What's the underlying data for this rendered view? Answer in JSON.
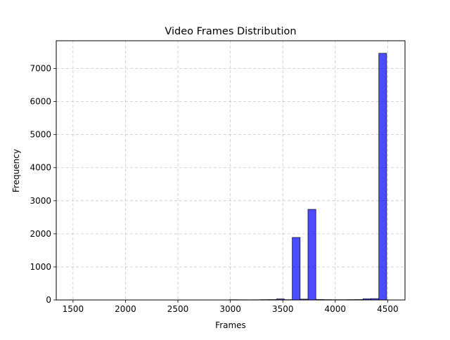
{
  "chart_data": {
    "type": "bar",
    "title": "Video Frames Distribution",
    "xlabel": "Frames",
    "ylabel": "Frequency",
    "xlim": [
      1340,
      4665
    ],
    "ylim": [
      0,
      7840
    ],
    "xticks": [
      1500,
      2000,
      2500,
      3000,
      3500,
      4000,
      4500
    ],
    "yticks": [
      0,
      1000,
      2000,
      3000,
      4000,
      5000,
      6000,
      7000
    ],
    "grid": true,
    "bar_color": "#0000ff",
    "bar_alpha": 0.7,
    "bar_edge_color": "#000000",
    "bin_width": 75,
    "bins": [
      {
        "start": 1490,
        "count": 0
      },
      {
        "start": 1565,
        "count": 0
      },
      {
        "start": 1640,
        "count": 0
      },
      {
        "start": 1715,
        "count": 0
      },
      {
        "start": 1790,
        "count": 0
      },
      {
        "start": 1865,
        "count": 0
      },
      {
        "start": 1940,
        "count": 0
      },
      {
        "start": 2015,
        "count": 0
      },
      {
        "start": 2090,
        "count": 0
      },
      {
        "start": 2165,
        "count": 0
      },
      {
        "start": 2240,
        "count": 0
      },
      {
        "start": 2315,
        "count": 0
      },
      {
        "start": 2390,
        "count": 0
      },
      {
        "start": 2465,
        "count": 0
      },
      {
        "start": 2540,
        "count": 0
      },
      {
        "start": 2615,
        "count": 0
      },
      {
        "start": 2690,
        "count": 0
      },
      {
        "start": 2765,
        "count": 0
      },
      {
        "start": 2840,
        "count": 0
      },
      {
        "start": 2915,
        "count": 0
      },
      {
        "start": 2990,
        "count": 8
      },
      {
        "start": 3065,
        "count": 6
      },
      {
        "start": 3140,
        "count": 5
      },
      {
        "start": 3215,
        "count": 6
      },
      {
        "start": 3290,
        "count": 10
      },
      {
        "start": 3365,
        "count": 12
      },
      {
        "start": 3440,
        "count": 30
      },
      {
        "start": 3515,
        "count": 8
      },
      {
        "start": 3590,
        "count": 1890
      },
      {
        "start": 3665,
        "count": 25
      },
      {
        "start": 3740,
        "count": 2740
      },
      {
        "start": 3815,
        "count": 15
      },
      {
        "start": 3890,
        "count": 10
      },
      {
        "start": 3965,
        "count": 8
      },
      {
        "start": 4040,
        "count": 8
      },
      {
        "start": 4115,
        "count": 10
      },
      {
        "start": 4190,
        "count": 12
      },
      {
        "start": 4265,
        "count": 35
      },
      {
        "start": 4340,
        "count": 40
      },
      {
        "start": 4415,
        "count": 7460
      }
    ]
  }
}
